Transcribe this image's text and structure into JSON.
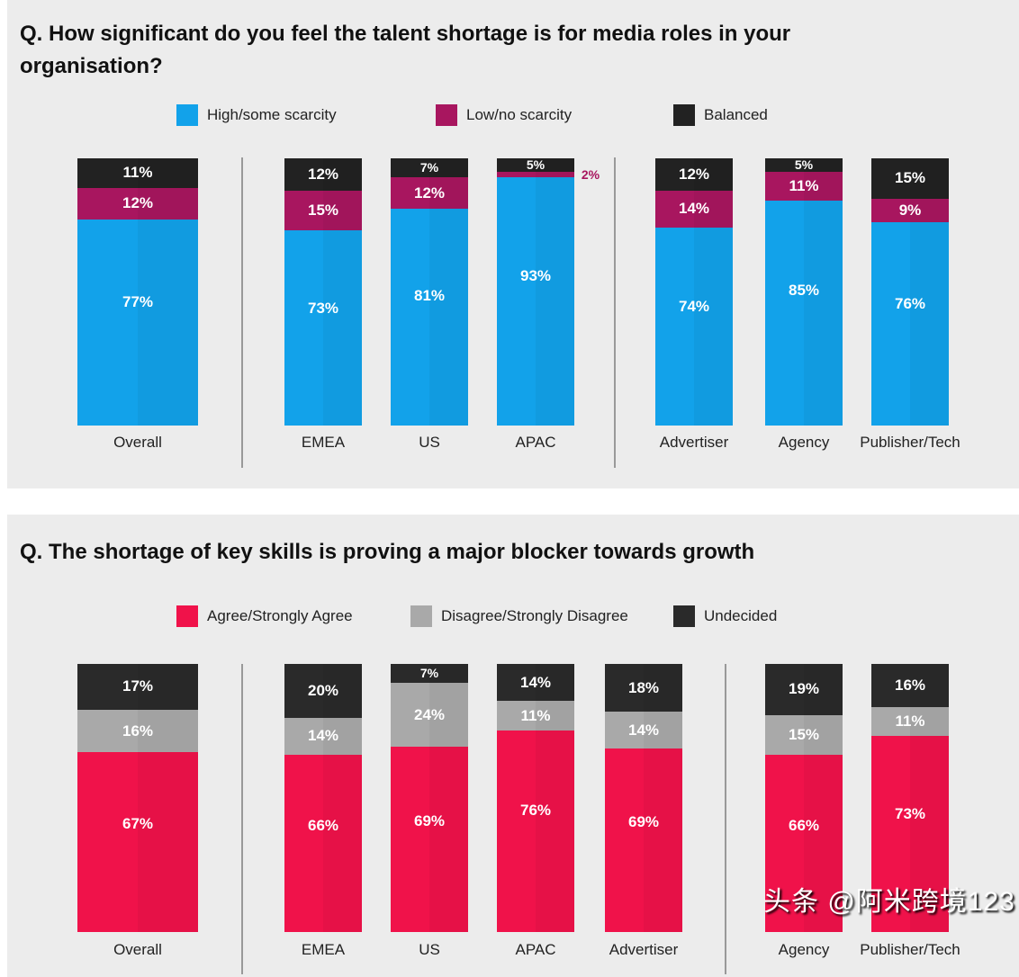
{
  "watermark": "头条 @阿米跨境123",
  "chart_data": [
    {
      "type": "bar",
      "stacked": true,
      "title": "Q. How significant do you feel the talent shortage is for media roles in your organisation?",
      "categories": [
        "Overall",
        "EMEA",
        "US",
        "APAC",
        "Advertiser",
        "Agency",
        "Publisher/Tech"
      ],
      "series": [
        {
          "name": "High/some scarcity",
          "color": "#12a2ea",
          "values": [
            77,
            73,
            81,
            93,
            74,
            85,
            76
          ]
        },
        {
          "name": "Low/no scarcity",
          "color": "#a8165f",
          "values": [
            12,
            15,
            12,
            2,
            14,
            11,
            9
          ]
        },
        {
          "name": "Balanced",
          "color": "#222222",
          "values": [
            11,
            12,
            7,
            5,
            12,
            5,
            15
          ]
        }
      ],
      "unit": "%",
      "legend": "top"
    },
    {
      "type": "bar",
      "stacked": true,
      "title": "Q. The shortage of key skills is proving a major blocker towards growth",
      "categories": [
        "Overall",
        "EMEA",
        "US",
        "APAC",
        "Advertiser",
        "Agency",
        "Publisher/Tech"
      ],
      "series": [
        {
          "name": "Agree/Strongly Agree",
          "color": "#f0124a",
          "values": [
            67,
            66,
            69,
            76,
            69,
            66,
            73
          ]
        },
        {
          "name": "Disagree/Strongly Disagree",
          "color": "#a9a9a9",
          "values": [
            16,
            14,
            24,
            11,
            14,
            15,
            11
          ]
        },
        {
          "name": "Undecided",
          "color": "#2a2a2a",
          "values": [
            17,
            20,
            7,
            14,
            18,
            19,
            16
          ]
        }
      ],
      "unit": "%",
      "legend": "top"
    }
  ]
}
